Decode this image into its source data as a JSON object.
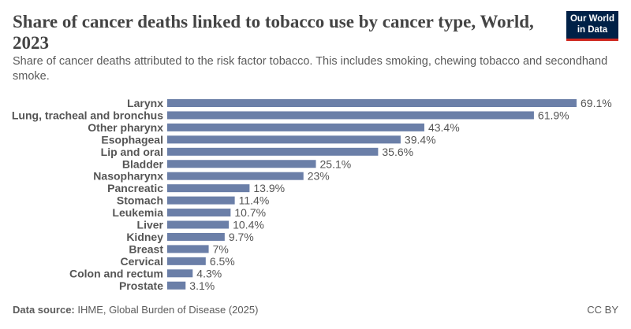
{
  "header": {
    "title": "Share of cancer deaths linked to tobacco use by cancer type, World, 2023",
    "subtitle": "Share of cancer deaths attributed to the risk factor tobacco. This includes smoking, chewing tobacco and secondhand smoke."
  },
  "logo": {
    "line1": "Our World",
    "line2": "in Data"
  },
  "colors": {
    "bar": "#6b7fa8",
    "logo_bg": "#002147",
    "logo_accent": "#ce261e"
  },
  "footer": {
    "source_label": "Data source:",
    "source_text": "IHME, Global Burden of Disease (2025)",
    "license": "CC BY"
  },
  "chart_data": {
    "type": "bar",
    "orientation": "horizontal",
    "categories": [
      "Larynx",
      "Lung, tracheal and bronchus",
      "Other pharynx",
      "Esophageal",
      "Lip and oral",
      "Bladder",
      "Nasopharynx",
      "Pancreatic",
      "Stomach",
      "Leukemia",
      "Liver",
      "Kidney",
      "Breast",
      "Cervical",
      "Colon and rectum",
      "Prostate"
    ],
    "values": [
      69.1,
      61.9,
      43.4,
      39.4,
      35.6,
      25.1,
      23,
      13.9,
      11.4,
      10.7,
      10.4,
      9.7,
      7,
      6.5,
      4.3,
      3.1
    ],
    "value_labels": [
      "69.1%",
      "61.9%",
      "43.4%",
      "39.4%",
      "35.6%",
      "25.1%",
      "23%",
      "13.9%",
      "11.4%",
      "10.7%",
      "10.4%",
      "9.7%",
      "7%",
      "6.5%",
      "4.3%",
      "3.1%"
    ],
    "unit": "%",
    "grid": false,
    "legend": "none"
  }
}
